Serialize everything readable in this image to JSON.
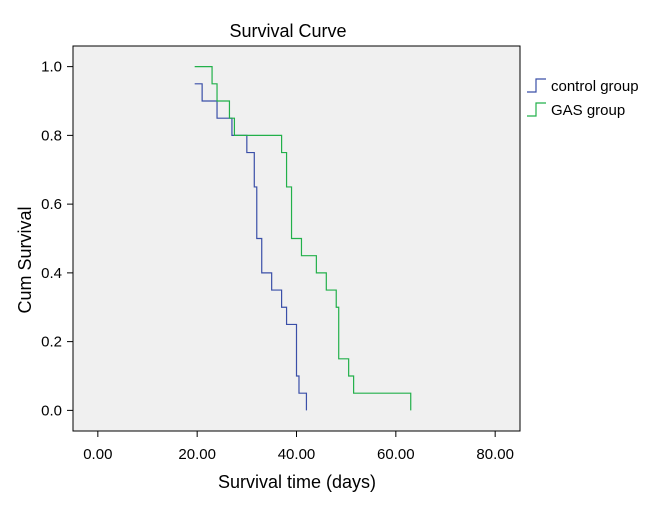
{
  "chart_data": {
    "type": "line",
    "subtype": "step",
    "title": "Survival Curve",
    "xlabel": "Survival time (days)",
    "ylabel": "Cum Survival",
    "xlim": [
      -5,
      85
    ],
    "ylim": [
      -0.06,
      1.06
    ],
    "x_ticks": [
      0,
      20,
      40,
      60,
      80
    ],
    "x_tick_labels": [
      "0.00",
      "20.00",
      "40.00",
      "60.00",
      "80.00"
    ],
    "y_ticks": [
      0,
      0.2,
      0.4,
      0.6,
      0.8,
      1.0
    ],
    "y_tick_labels": [
      "0.0",
      "0.2",
      "0.4",
      "0.6",
      "0.8",
      "1.0"
    ],
    "grid": false,
    "legend_position": "right",
    "plot_background": "#f0f0f0",
    "series": [
      {
        "name": "control group",
        "color": "#3a4fa8",
        "x": [
          19.5,
          21,
          24,
          27,
          30,
          31.5,
          32,
          33,
          35,
          37,
          38,
          40,
          40.5,
          41.5,
          42
        ],
        "y": [
          0.95,
          0.9,
          0.85,
          0.8,
          0.75,
          0.65,
          0.5,
          0.4,
          0.35,
          0.3,
          0.25,
          0.1,
          0.05,
          0.05,
          0.0
        ]
      },
      {
        "name": "GAS group",
        "color": "#22b04a",
        "x": [
          19.5,
          23,
          24,
          25.5,
          26.5,
          27.5,
          37,
          38,
          39,
          41,
          44,
          46,
          48,
          48.5,
          50.5,
          51.5,
          63
        ],
        "y": [
          1.0,
          0.95,
          0.9,
          0.9,
          0.85,
          0.8,
          0.75,
          0.65,
          0.5,
          0.45,
          0.4,
          0.35,
          0.3,
          0.15,
          0.1,
          0.05,
          0.0
        ]
      }
    ]
  }
}
